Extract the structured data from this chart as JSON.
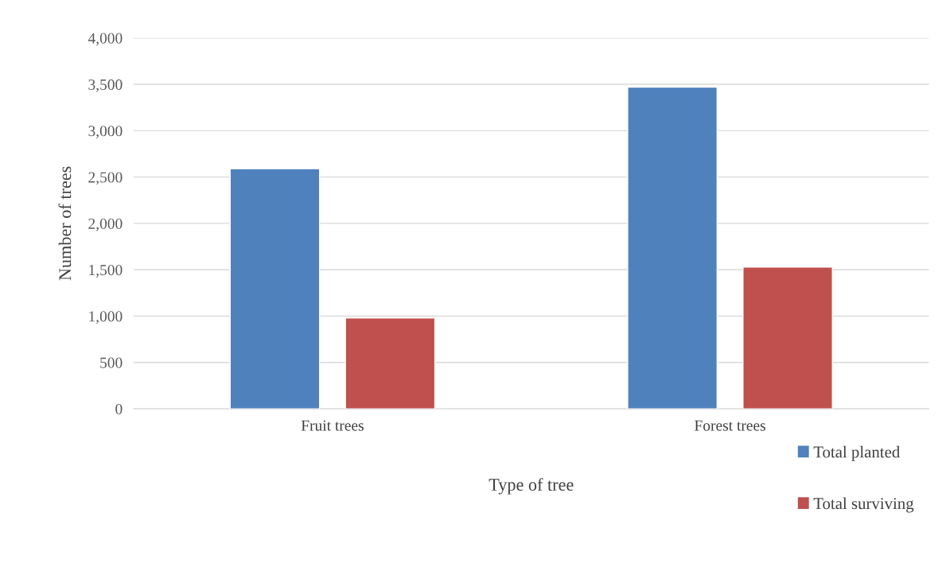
{
  "chart_data": {
    "type": "bar",
    "xlabel": "Type of tree",
    "ylabel": "Number of trees",
    "categories": [
      "Fruit trees",
      "Forest trees"
    ],
    "series": [
      {
        "name": "Total planted",
        "color": "#4f81bd",
        "values": [
          2590,
          3470
        ]
      },
      {
        "name": "Total surviving",
        "color": "#c0504d",
        "values": [
          980,
          1530
        ]
      }
    ],
    "ylim": [
      0,
      4000
    ],
    "yticks": [
      {
        "value": 0,
        "label": "0"
      },
      {
        "value": 500,
        "label": "500"
      },
      {
        "value": 1000,
        "label": "1,000"
      },
      {
        "value": 1500,
        "label": "1,500"
      },
      {
        "value": 2000,
        "label": "2,000"
      },
      {
        "value": 2500,
        "label": "2,500"
      },
      {
        "value": 3000,
        "label": "3,000"
      },
      {
        "value": 3500,
        "label": "3,500"
      },
      {
        "value": 4000,
        "label": "4,000"
      }
    ],
    "grid": "y",
    "legend": "bottom right"
  }
}
